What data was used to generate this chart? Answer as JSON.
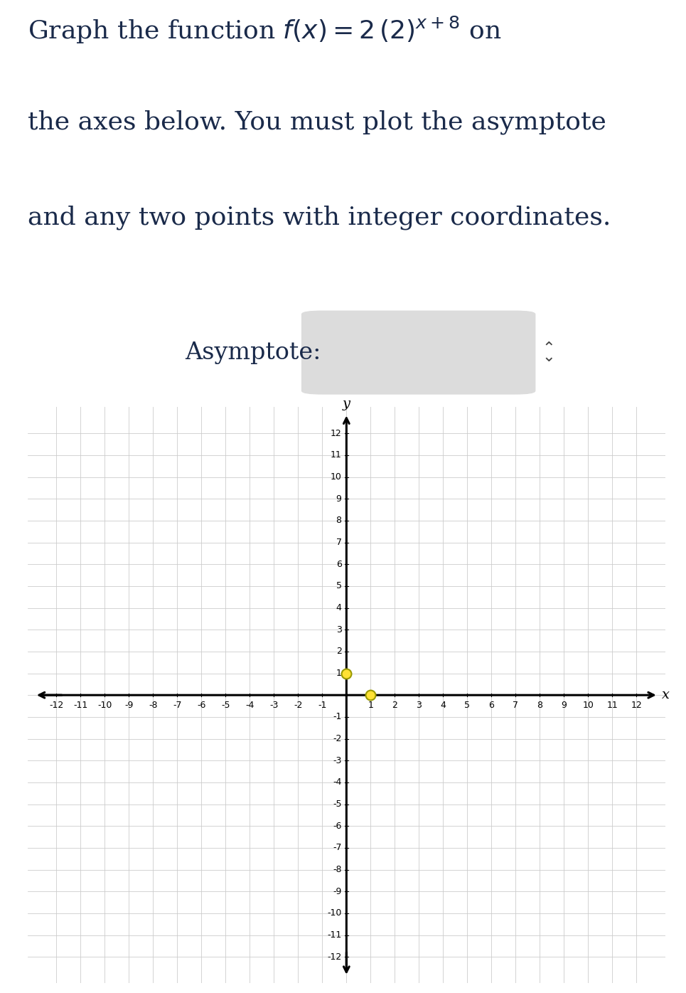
{
  "xmin": -12,
  "xmax": 12,
  "ymin": -12,
  "ymax": 12,
  "point1": [
    0,
    1
  ],
  "point2": [
    1,
    0
  ],
  "point_color": "#FFE135",
  "point_edge_color": "#999900",
  "grid_color": "#CCCCCC",
  "background_color": "#FFFFFF",
  "text_color": "#1a2a4a",
  "xlabel": "x",
  "ylabel": "y",
  "header_line1": "Graph the function $f(x) = 2\\,(2)^{x+8}$ on",
  "header_line2": "the axes below. You must plot the asymptote",
  "header_line3": "and any two points with integer coordinates.",
  "asymptote_text": "Asymptote:",
  "header_fontsize": 26,
  "asym_fontsize": 24,
  "tick_fontsize": 9,
  "axis_label_fontsize": 14
}
